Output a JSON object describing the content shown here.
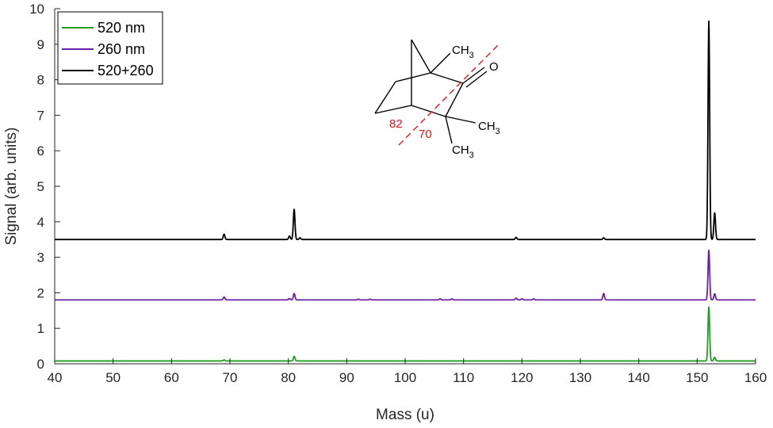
{
  "chart_data": {
    "type": "line",
    "xlabel": "Mass (u)",
    "ylabel": "Signal (arb. units)",
    "xlim": [
      40,
      160
    ],
    "ylim": [
      0,
      10
    ],
    "xticks": [
      40,
      50,
      60,
      70,
      80,
      90,
      100,
      110,
      120,
      130,
      140,
      150,
      160
    ],
    "yticks": [
      0,
      1,
      2,
      3,
      4,
      5,
      6,
      7,
      8,
      9,
      10
    ],
    "grid": false,
    "legend_position": "top-left",
    "series": [
      {
        "name": "520 nm",
        "color": "#1f9e1f",
        "baseline": 0.08,
        "peaks": [
          {
            "x": 69,
            "y": 0.11
          },
          {
            "x": 81,
            "y": 0.21
          },
          {
            "x": 152,
            "y": 1.6
          },
          {
            "x": 153,
            "y": 0.18
          }
        ]
      },
      {
        "name": "260 nm",
        "color": "#6a1fa6",
        "baseline": 1.8,
        "peaks": [
          {
            "x": 69,
            "y": 1.88
          },
          {
            "x": 80.2,
            "y": 1.84
          },
          {
            "x": 81,
            "y": 1.98
          },
          {
            "x": 92,
            "y": 1.82
          },
          {
            "x": 94,
            "y": 1.82
          },
          {
            "x": 106,
            "y": 1.83
          },
          {
            "x": 108,
            "y": 1.83
          },
          {
            "x": 119,
            "y": 1.85
          },
          {
            "x": 120,
            "y": 1.83
          },
          {
            "x": 122,
            "y": 1.83
          },
          {
            "x": 134,
            "y": 1.98
          },
          {
            "x": 152,
            "y": 3.2
          },
          {
            "x": 153,
            "y": 1.97
          }
        ]
      },
      {
        "name": "520+260",
        "color": "#000000",
        "baseline": 3.5,
        "peaks": [
          {
            "x": 69,
            "y": 3.65
          },
          {
            "x": 80.2,
            "y": 3.6
          },
          {
            "x": 81,
            "y": 4.35
          },
          {
            "x": 82,
            "y": 3.55
          },
          {
            "x": 119,
            "y": 3.56
          },
          {
            "x": 134,
            "y": 3.55
          },
          {
            "x": 152,
            "y": 9.65
          },
          {
            "x": 153,
            "y": 4.25
          }
        ]
      }
    ],
    "molecule": {
      "labels": [
        "CH",
        "3",
        "O",
        "CH",
        "3",
        "CH",
        "3"
      ],
      "fragments": [
        "82",
        "70"
      ]
    }
  }
}
